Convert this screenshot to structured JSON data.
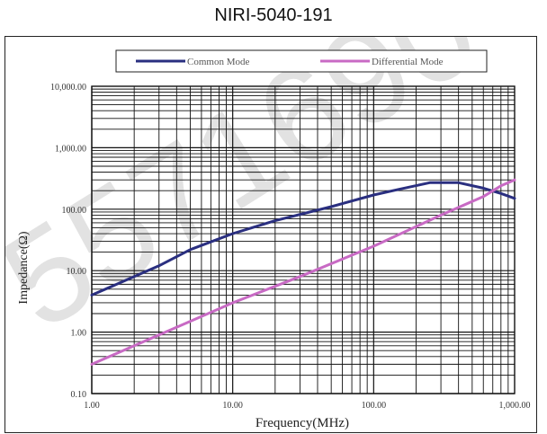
{
  "page": {
    "title": "NIRI-5040-191"
  },
  "chart_data": {
    "type": "line",
    "title": "NIRI-5040-191",
    "xlabel": "Frequency(MHz)",
    "ylabel": "Impedance(Ω)",
    "x_scale": "log",
    "y_scale": "log",
    "xlim": [
      1,
      1000
    ],
    "ylim": [
      0.1,
      10000
    ],
    "x_ticks": [
      "1.00",
      "10.00",
      "100.00",
      "1,000.00"
    ],
    "y_ticks": [
      "0.10",
      "1.00",
      "10.00",
      "100.00",
      "1,000.00",
      "10,000.00"
    ],
    "grid": true,
    "legend_position": "top",
    "series": [
      {
        "name": "Common Mode",
        "color": "#2a2f80",
        "x": [
          1,
          3,
          5,
          10,
          20,
          50,
          100,
          150,
          250,
          400,
          600,
          800,
          1000
        ],
        "y": [
          4,
          12,
          22,
          40,
          65,
          110,
          170,
          210,
          270,
          270,
          220,
          180,
          150
        ]
      },
      {
        "name": "Differential Mode",
        "color": "#c86ac4",
        "x": [
          1,
          3,
          10,
          30,
          100,
          300,
          600,
          800,
          1000
        ],
        "y": [
          0.3,
          0.9,
          3,
          8,
          25,
          80,
          160,
          240,
          300
        ]
      }
    ]
  },
  "watermark": {
    "text": "5571690"
  }
}
